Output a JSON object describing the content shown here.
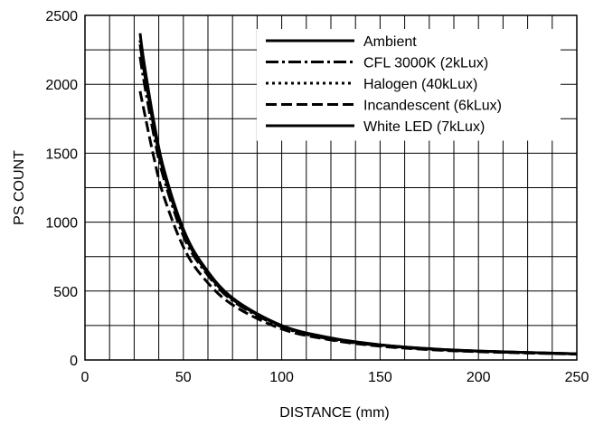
{
  "chart_data": {
    "type": "line",
    "title": "",
    "xlabel": "DISTANCE (mm)",
    "ylabel": "PS COUNT",
    "xlim": [
      0,
      250
    ],
    "ylim": [
      0,
      2500
    ],
    "x_ticks": [
      0,
      50,
      100,
      150,
      200,
      250
    ],
    "y_ticks": [
      0,
      500,
      1000,
      1500,
      2000,
      2500
    ],
    "x_tick_labels": [
      "0",
      "50",
      "100",
      "150",
      "200",
      "250"
    ],
    "y_tick_labels": [
      "0",
      "500",
      "1000",
      "1500",
      "2000",
      "2500"
    ],
    "x_minor_step": 12.5,
    "y_minor_step": 250,
    "grid": true,
    "legend_position": "top-right",
    "series": [
      {
        "name": "Ambient",
        "style": "solid",
        "x": [
          28,
          30,
          35,
          40,
          50,
          60,
          75,
          100,
          125,
          150,
          175,
          200,
          250
        ],
        "y": [
          2370,
          2160,
          1730,
          1390,
          950,
          690,
          450,
          250,
          160,
          110,
          82,
          65,
          45
        ]
      },
      {
        "name": "CFL 3000K (2kLux)",
        "style": "dashdot",
        "x": [
          28,
          30,
          35,
          40,
          50,
          60,
          75,
          100,
          125,
          150,
          175,
          200,
          250
        ],
        "y": [
          2200,
          2020,
          1630,
          1320,
          900,
          660,
          430,
          240,
          150,
          105,
          78,
          62,
          43
        ]
      },
      {
        "name": "Halogen (40kLux)",
        "style": "dotted",
        "x": [
          28,
          30,
          35,
          40,
          50,
          60,
          75,
          100,
          125,
          150,
          175,
          200,
          250
        ],
        "y": [
          2320,
          2120,
          1700,
          1370,
          940,
          680,
          445,
          245,
          155,
          108,
          80,
          64,
          44
        ]
      },
      {
        "name": "Incandescent (6kLux)",
        "style": "dashed",
        "x": [
          28,
          30,
          35,
          40,
          50,
          60,
          75,
          100,
          125,
          150,
          175,
          200,
          250
        ],
        "y": [
          1950,
          1810,
          1470,
          1190,
          820,
          600,
          400,
          225,
          145,
          100,
          75,
          60,
          42
        ]
      },
      {
        "name": "White LED (7kLux)",
        "style": "solid",
        "x": [
          28,
          30,
          35,
          40,
          50,
          60,
          75,
          100,
          125,
          150,
          175,
          200,
          250
        ],
        "y": [
          2290,
          2100,
          1690,
          1360,
          930,
          675,
          440,
          248,
          158,
          110,
          81,
          64,
          45
        ]
      }
    ]
  }
}
